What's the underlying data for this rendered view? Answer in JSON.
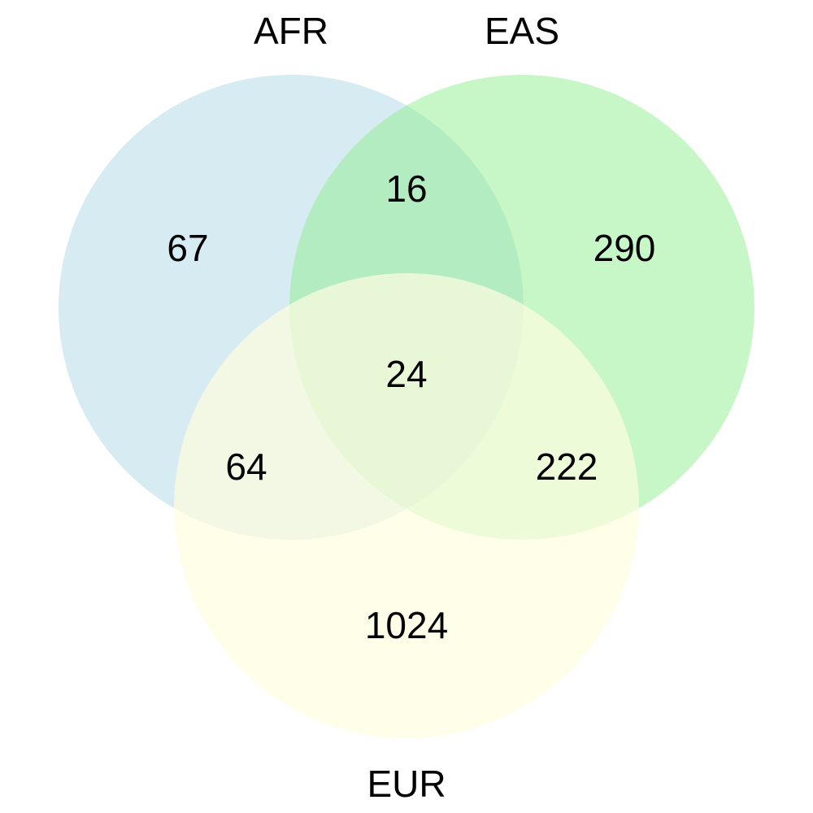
{
  "sets": [
    {
      "id": "afr",
      "label": "AFR",
      "color": "#add8e6"
    },
    {
      "id": "eas",
      "label": "EAS",
      "color": "#90ee90"
    },
    {
      "id": "eur",
      "label": "EUR",
      "color": "#fffde0"
    }
  ],
  "regions": {
    "afr_only": "67",
    "eas_only": "290",
    "eur_only": "1024",
    "afr_eas": "16",
    "afr_eur": "64",
    "eas_eur": "222",
    "all": "24"
  }
}
